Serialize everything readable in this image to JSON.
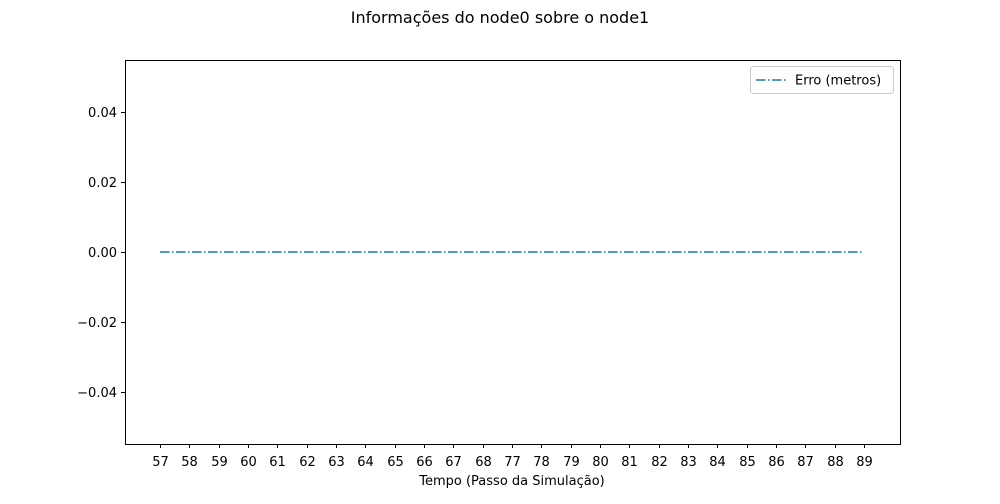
{
  "chart_data": {
    "type": "line",
    "title": "Informações do node0 sobre o node1",
    "xlabel": "Tempo (Passo da Simulação)",
    "ylabel": "",
    "categories": [
      "57",
      "58",
      "59",
      "60",
      "61",
      "62",
      "63",
      "64",
      "65",
      "66",
      "67",
      "68",
      "77",
      "78",
      "79",
      "80",
      "81",
      "82",
      "83",
      "84",
      "85",
      "86",
      "87",
      "88",
      "89"
    ],
    "ylim": [
      -0.055,
      0.055
    ],
    "yticks": [
      "0.04",
      "0.02",
      "0.00",
      "−0.02",
      "−0.04"
    ],
    "ytick_values": [
      0.04,
      0.02,
      0.0,
      -0.02,
      -0.04
    ],
    "grid": false,
    "legend_position": "top-right",
    "series": [
      {
        "name": "Erro (metros)",
        "color": "#1f77b4",
        "linestyle": "dashdot",
        "values": [
          0,
          0,
          0,
          0,
          0,
          0,
          0,
          0,
          0,
          0,
          0,
          0,
          0,
          0,
          0,
          0,
          0,
          0,
          0,
          0,
          0,
          0,
          0,
          0,
          0
        ]
      }
    ]
  }
}
